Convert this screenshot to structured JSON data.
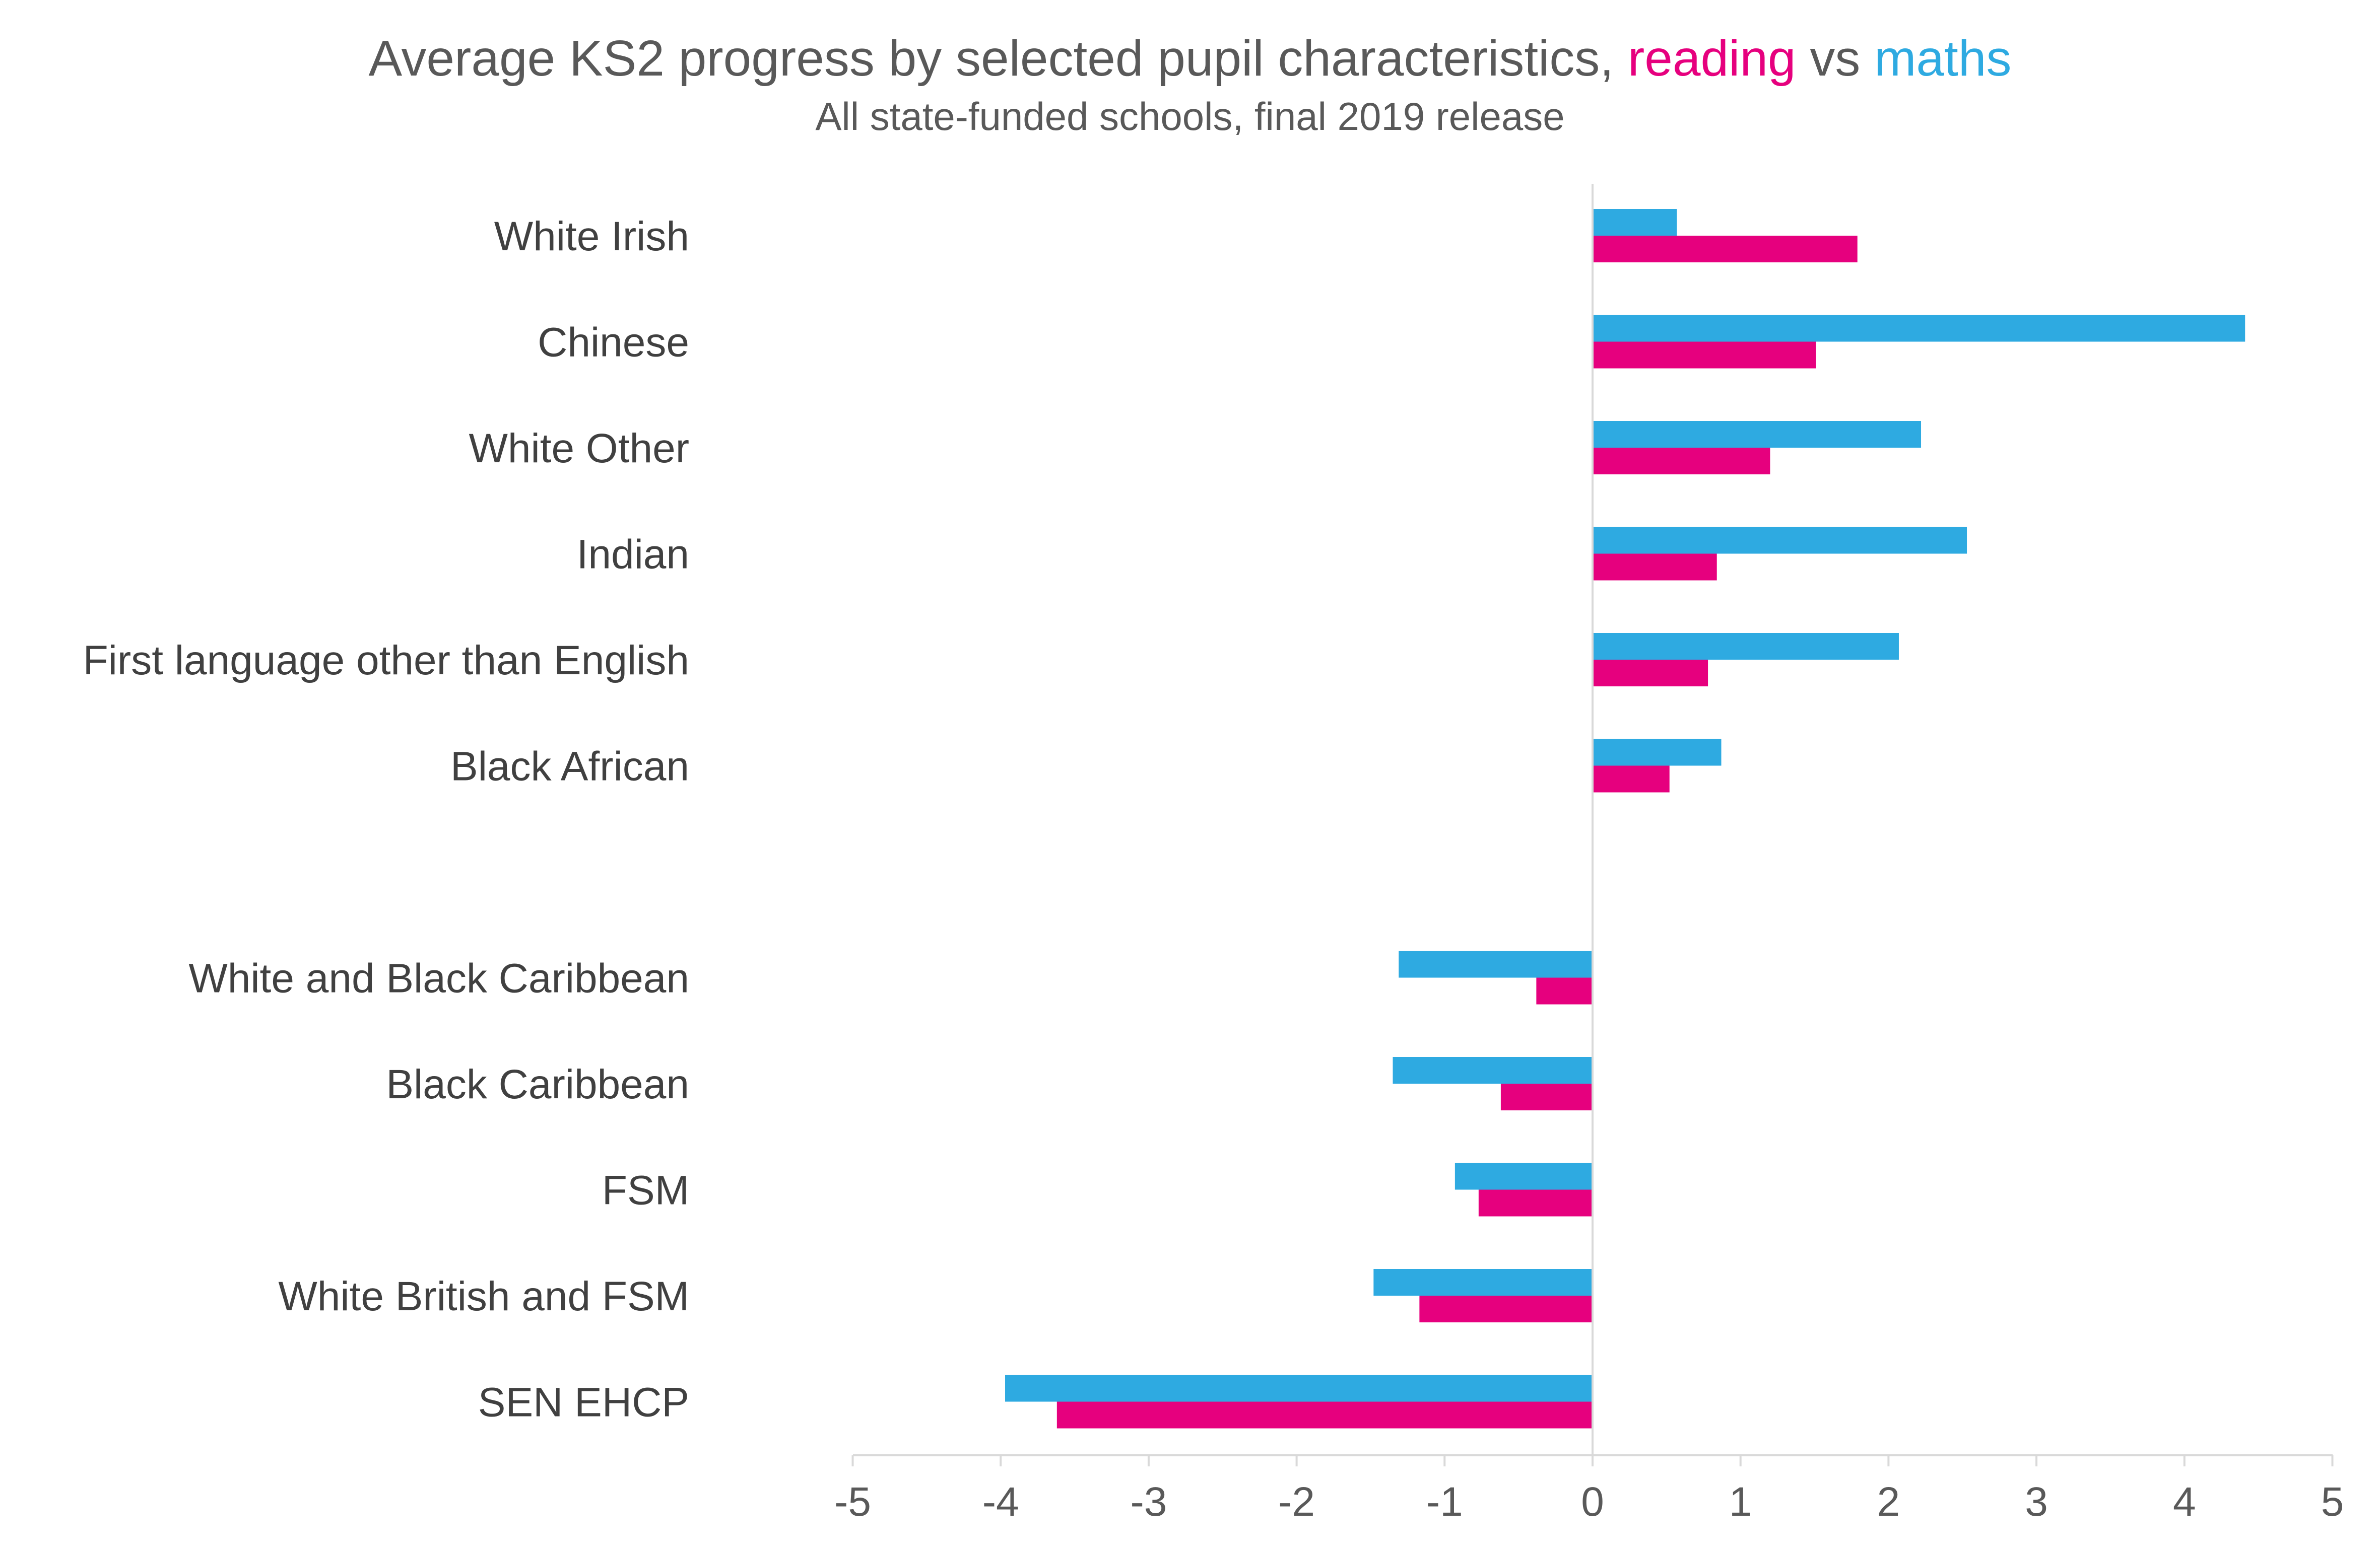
{
  "chart_data": {
    "type": "bar",
    "orientation": "horizontal",
    "title": {
      "prefix": "Average KS2 progress by selected pupil characteristics, ",
      "series1": "reading",
      "middle": " vs ",
      "series2": "maths"
    },
    "subtitle": "All state-funded schools, final 2019 release",
    "categories": [
      "White Irish",
      "Chinese",
      "White Other",
      "Indian",
      "First language other than English",
      "Black African",
      "",
      "White and Black Caribbean",
      "Black Caribbean",
      "FSM",
      "White British and FSM",
      "SEN EHCP"
    ],
    "series": [
      {
        "name": "maths",
        "color": "#2EAAE1",
        "values": [
          0.57,
          4.41,
          2.22,
          2.53,
          2.07,
          0.87,
          null,
          -1.31,
          -1.35,
          -0.93,
          -1.48,
          -3.97
        ]
      },
      {
        "name": "reading",
        "color": "#E6007E",
        "values": [
          1.79,
          1.51,
          1.2,
          0.84,
          0.78,
          0.52,
          null,
          -0.38,
          -0.62,
          -0.77,
          -1.17,
          -3.62
        ]
      }
    ],
    "xlim": [
      -5,
      5
    ],
    "xticks": [
      "-5",
      "-4",
      "-3",
      "-2",
      "-1",
      "0",
      "1",
      "2",
      "3",
      "4",
      "5"
    ],
    "grid": false,
    "legend": "none (series names coloured in title)",
    "axis_color": "#D9D9D9",
    "title_color": "#595959"
  }
}
